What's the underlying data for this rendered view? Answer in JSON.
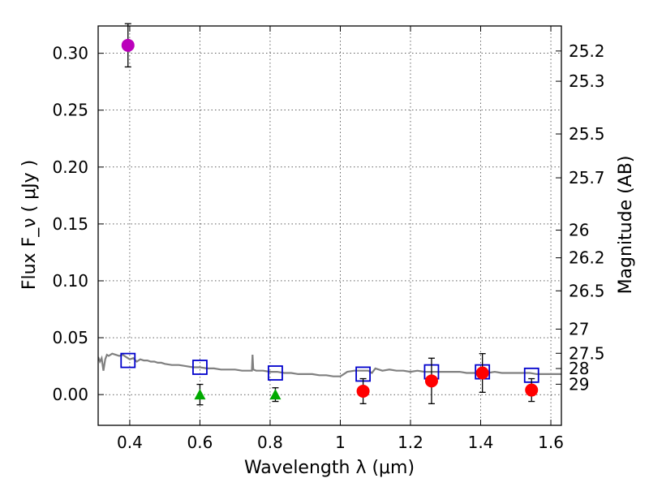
{
  "chart_data": {
    "type": "scatter",
    "xlabel": "Wavelength  λ (μm)",
    "ylabel": "Flux  F_ν  ( μJy )",
    "y2label": "Magnitude (AB)",
    "xlim": [
      0.31,
      1.63
    ],
    "ylim": [
      -0.027,
      0.324
    ],
    "grid": true,
    "x_ticks": [
      {
        "value": 0.4,
        "label": "0.4"
      },
      {
        "value": 0.6,
        "label": "0.6"
      },
      {
        "value": 0.8,
        "label": "0.8"
      },
      {
        "value": 1.0,
        "label": "1"
      },
      {
        "value": 1.2,
        "label": "1.2"
      },
      {
        "value": 1.4,
        "label": "1.4"
      },
      {
        "value": 1.6,
        "label": "1.6"
      }
    ],
    "y_ticks": [
      {
        "value": 0.0,
        "label": "0.00"
      },
      {
        "value": 0.05,
        "label": "0.05"
      },
      {
        "value": 0.1,
        "label": "0.10"
      },
      {
        "value": 0.15,
        "label": "0.15"
      },
      {
        "value": 0.2,
        "label": "0.20"
      },
      {
        "value": 0.25,
        "label": "0.25"
      },
      {
        "value": 0.3,
        "label": "0.30"
      }
    ],
    "mag_ticks": [
      {
        "value": 25.2,
        "label": "25.2"
      },
      {
        "value": 25.3,
        "label": "25.3"
      },
      {
        "value": 25.5,
        "label": "25.5"
      },
      {
        "value": 25.7,
        "label": "25.7"
      },
      {
        "value": 26.0,
        "label": "26"
      },
      {
        "value": 26.2,
        "label": "26.2"
      },
      {
        "value": 26.5,
        "label": "26.5"
      },
      {
        "value": 27.0,
        "label": "27"
      },
      {
        "value": 27.5,
        "label": "27.5"
      },
      {
        "value": 28.0,
        "label": "28"
      },
      {
        "value": 29.0,
        "label": "29"
      }
    ],
    "series": [
      {
        "name": "model-spectrum",
        "kind": "line",
        "color": "#808080",
        "x": [
          0.31,
          0.315,
          0.32,
          0.325,
          0.33,
          0.335,
          0.34,
          0.35,
          0.36,
          0.37,
          0.38,
          0.39,
          0.4,
          0.41,
          0.42,
          0.43,
          0.44,
          0.45,
          0.46,
          0.47,
          0.48,
          0.49,
          0.5,
          0.52,
          0.54,
          0.56,
          0.58,
          0.6,
          0.62,
          0.64,
          0.66,
          0.68,
          0.7,
          0.72,
          0.74,
          0.748,
          0.75,
          0.752,
          0.76,
          0.78,
          0.8,
          0.82,
          0.84,
          0.86,
          0.88,
          0.9,
          0.92,
          0.94,
          0.96,
          0.98,
          1.0,
          1.01,
          1.02,
          1.04,
          1.06,
          1.08,
          1.09,
          1.1,
          1.12,
          1.14,
          1.16,
          1.18,
          1.2,
          1.22,
          1.24,
          1.26,
          1.28,
          1.3,
          1.32,
          1.34,
          1.36,
          1.38,
          1.4,
          1.42,
          1.44,
          1.46,
          1.48,
          1.5,
          1.52,
          1.54,
          1.56,
          1.58,
          1.6,
          1.63
        ],
        "y": [
          0.033,
          0.029,
          0.032,
          0.021,
          0.031,
          0.035,
          0.034,
          0.036,
          0.035,
          0.034,
          0.035,
          0.033,
          0.031,
          0.032,
          0.029,
          0.031,
          0.03,
          0.03,
          0.029,
          0.029,
          0.028,
          0.028,
          0.027,
          0.026,
          0.026,
          0.025,
          0.024,
          0.024,
          0.023,
          0.023,
          0.022,
          0.022,
          0.022,
          0.021,
          0.021,
          0.021,
          0.035,
          0.022,
          0.021,
          0.021,
          0.02,
          0.02,
          0.019,
          0.019,
          0.018,
          0.018,
          0.018,
          0.017,
          0.017,
          0.016,
          0.016,
          0.018,
          0.02,
          0.021,
          0.021,
          0.021,
          0.019,
          0.023,
          0.021,
          0.022,
          0.021,
          0.021,
          0.02,
          0.021,
          0.02,
          0.02,
          0.02,
          0.02,
          0.02,
          0.02,
          0.019,
          0.019,
          0.019,
          0.019,
          0.02,
          0.019,
          0.019,
          0.019,
          0.019,
          0.019,
          0.018,
          0.018,
          0.018,
          0.018
        ]
      },
      {
        "name": "model-photometry",
        "kind": "open-square",
        "color": "#0000cc",
        "x": [
          0.395,
          0.6,
          0.815,
          1.065,
          1.26,
          1.405,
          1.545
        ],
        "y": [
          0.03,
          0.024,
          0.019,
          0.018,
          0.02,
          0.02,
          0.017
        ]
      },
      {
        "name": "detections",
        "kind": "circle",
        "color": "#ff0000",
        "x": [
          1.065,
          1.26,
          1.405,
          1.545
        ],
        "y": [
          0.003,
          0.012,
          0.019,
          0.004
        ],
        "err": [
          0.011,
          0.02,
          0.017,
          0.01
        ]
      },
      {
        "name": "upper-limits",
        "kind": "triangle",
        "color": "#00aa00",
        "x": [
          0.6,
          0.815
        ],
        "y": [
          0.0,
          0.0
        ],
        "err": [
          0.009,
          0.006
        ]
      },
      {
        "name": "uv-detection",
        "kind": "circle",
        "color": "#bb00bb",
        "x": [
          0.395
        ],
        "y": [
          0.307
        ],
        "err": [
          0.019
        ]
      }
    ]
  }
}
